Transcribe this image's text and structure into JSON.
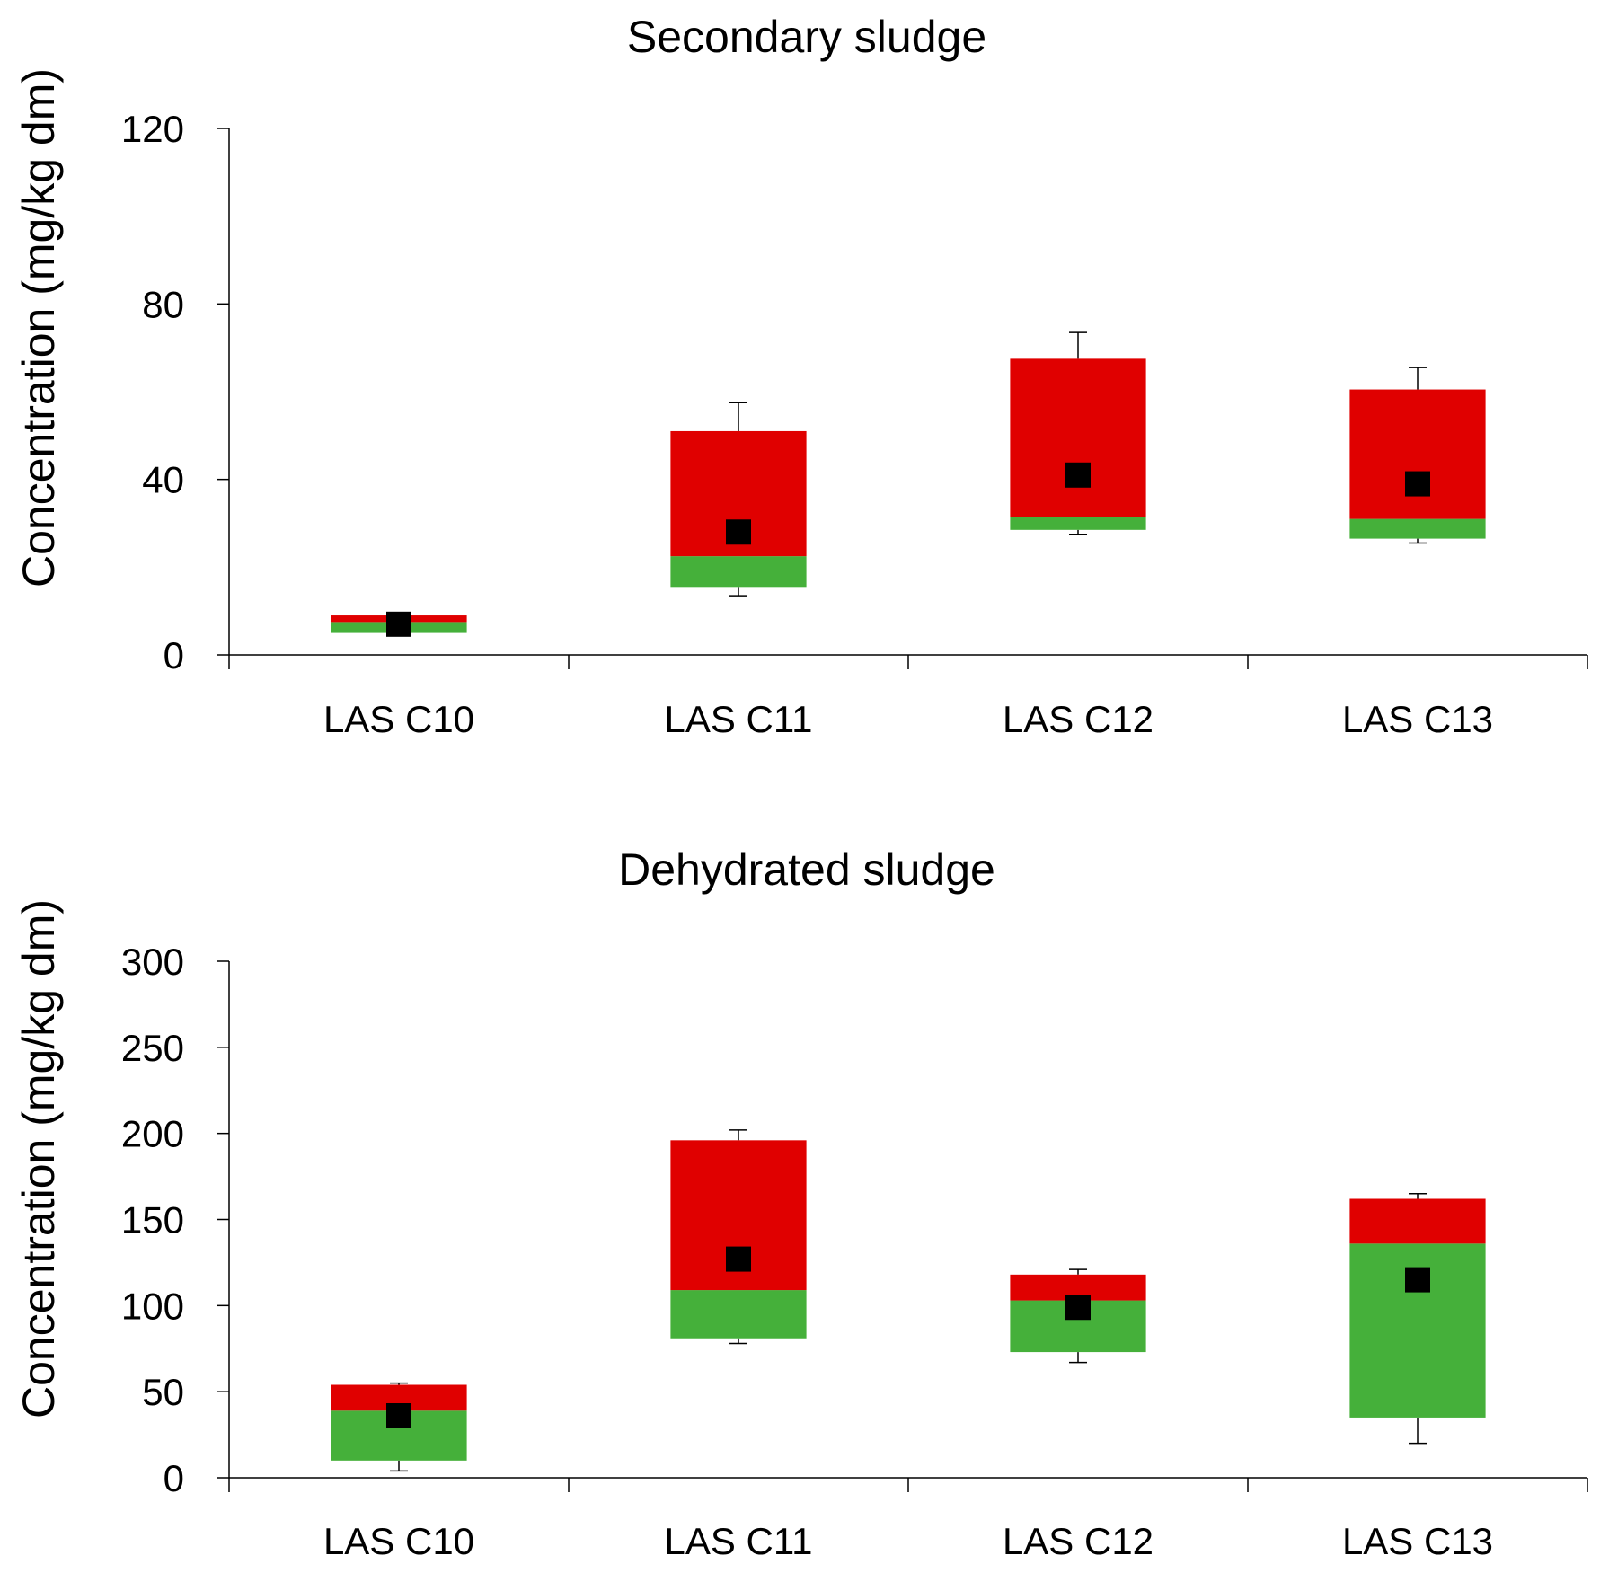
{
  "chart_data": [
    {
      "type": "box",
      "title": "Secondary sludge",
      "ylabel": "Concentration (mg/kg dm)",
      "xlabel": "",
      "ylim": [
        0,
        120
      ],
      "yticks": [
        0,
        40,
        80,
        120
      ],
      "categories": [
        "LAS C10",
        "LAS C11",
        "LAS C12",
        "LAS C13"
      ],
      "series": [
        {
          "name": "whisker_min",
          "values": [
            5,
            13.5,
            27.5,
            25.5
          ]
        },
        {
          "name": "q1",
          "values": [
            5,
            15.5,
            28.5,
            26.5
          ]
        },
        {
          "name": "median",
          "values": [
            7.5,
            22.5,
            31.5,
            31
          ]
        },
        {
          "name": "q3",
          "values": [
            9,
            51,
            67.5,
            60.5
          ]
        },
        {
          "name": "whisker_max",
          "values": [
            9,
            57.5,
            73.5,
            65.5
          ]
        },
        {
          "name": "mean",
          "values": [
            7,
            28,
            41,
            39
          ]
        }
      ]
    },
    {
      "type": "box",
      "title": "Dehydrated sludge",
      "ylabel": "Concentration (mg/kg dm)",
      "xlabel": "",
      "ylim": [
        0,
        300
      ],
      "yticks": [
        0,
        50,
        100,
        150,
        200,
        250,
        300
      ],
      "categories": [
        "LAS C10",
        "LAS C11",
        "LAS C12",
        "LAS C13"
      ],
      "series": [
        {
          "name": "whisker_min",
          "values": [
            4,
            78,
            67,
            20
          ]
        },
        {
          "name": "q1",
          "values": [
            10,
            81,
            73,
            35
          ]
        },
        {
          "name": "median",
          "values": [
            39,
            109,
            103,
            136
          ]
        },
        {
          "name": "q3",
          "values": [
            54,
            196,
            118,
            162
          ]
        },
        {
          "name": "whisker_max",
          "values": [
            55,
            202,
            121,
            165
          ]
        },
        {
          "name": "mean",
          "values": [
            36,
            127,
            99,
            115
          ]
        }
      ]
    }
  ],
  "colors": {
    "lower_box": "#45b03a",
    "upper_box": "#e00000",
    "mean_marker": "#000000",
    "axis": "#000000"
  }
}
